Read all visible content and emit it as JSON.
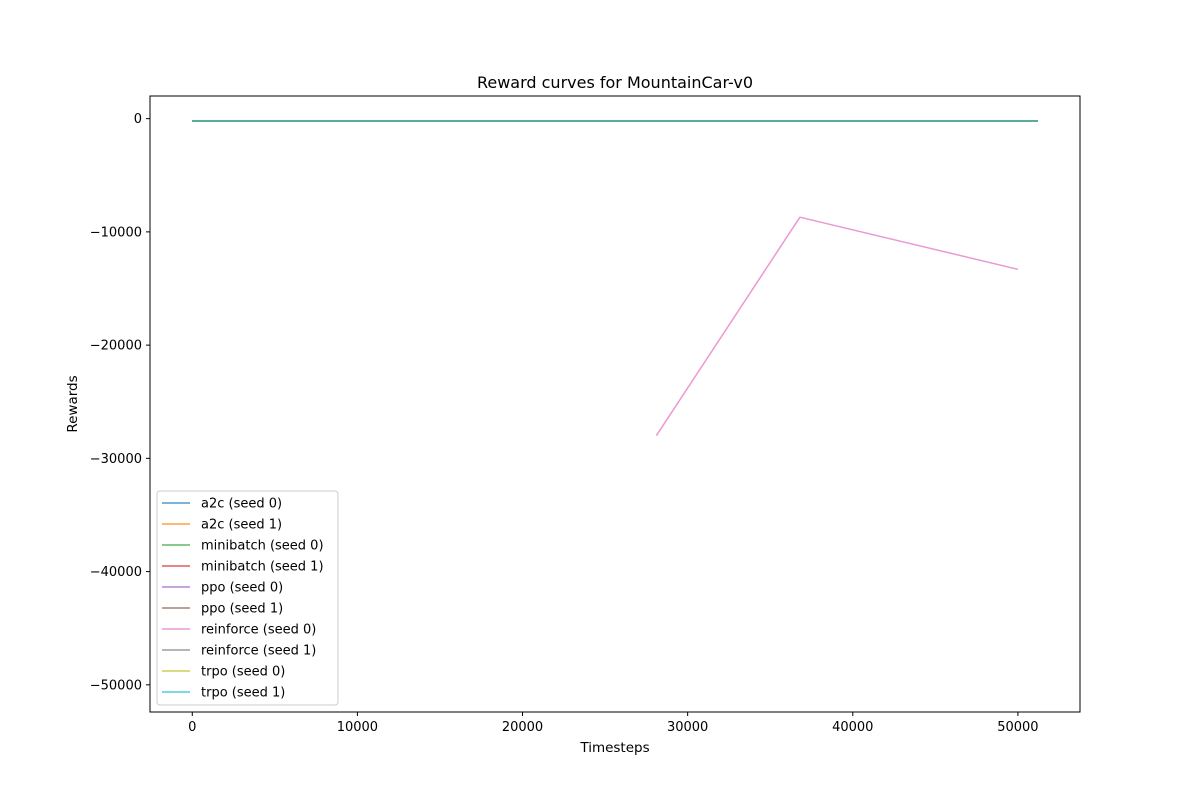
{
  "chart_data": {
    "type": "line",
    "title": "Reward curves for MountainCar-v0",
    "xlabel": "Timesteps",
    "ylabel": "Rewards",
    "xlim": [
      -2560,
      53760
    ],
    "ylim": [
      -52400,
      2000
    ],
    "xticks": [
      0,
      10000,
      20000,
      30000,
      40000,
      50000
    ],
    "yticks": [
      0,
      -10000,
      -20000,
      -30000,
      -40000,
      -50000
    ],
    "xtick_labels": [
      "0",
      "10000",
      "20000",
      "30000",
      "40000",
      "50000"
    ],
    "ytick_labels": [
      "0",
      "−10000",
      "−20000",
      "−30000",
      "−40000",
      "−50000"
    ],
    "grid": false,
    "legend_position": "lower-left",
    "series": [
      {
        "name": "a2c (seed 0)",
        "color": "#1f77b4",
        "x": [
          0,
          51200
        ],
        "y": [
          -200,
          -200
        ]
      },
      {
        "name": "a2c (seed 1)",
        "color": "#ff7f0e",
        "x": [
          0,
          51200
        ],
        "y": [
          -200,
          -200
        ]
      },
      {
        "name": "minibatch (seed 0)",
        "color": "#2ca02c",
        "x": [
          0,
          51200
        ],
        "y": [
          -200,
          -200
        ]
      },
      {
        "name": "minibatch (seed 1)",
        "color": "#d62728",
        "x": [
          0,
          51200
        ],
        "y": [
          -200,
          -200
        ]
      },
      {
        "name": "ppo (seed 0)",
        "color": "#9467bd",
        "x": [
          0,
          51200
        ],
        "y": [
          -200,
          -200
        ]
      },
      {
        "name": "ppo (seed 1)",
        "color": "#8c564b",
        "x": [
          0,
          51200
        ],
        "y": [
          -200,
          -200
        ]
      },
      {
        "name": "reinforce (seed 0)",
        "color": "#e377c2",
        "x": [
          28100,
          36800,
          50000
        ],
        "y": [
          -28000,
          -8700,
          -13300
        ]
      },
      {
        "name": "reinforce (seed 1)",
        "color": "#7f7f7f",
        "x": [
          0,
          51200
        ],
        "y": [
          -200,
          -200
        ]
      },
      {
        "name": "trpo (seed 0)",
        "color": "#bcbd22",
        "x": [
          0,
          51200
        ],
        "y": [
          -200,
          -200
        ]
      },
      {
        "name": "trpo (seed 1)",
        "color": "#17becf",
        "x": [
          0,
          51200
        ],
        "y": [
          -200,
          -200
        ]
      }
    ]
  }
}
